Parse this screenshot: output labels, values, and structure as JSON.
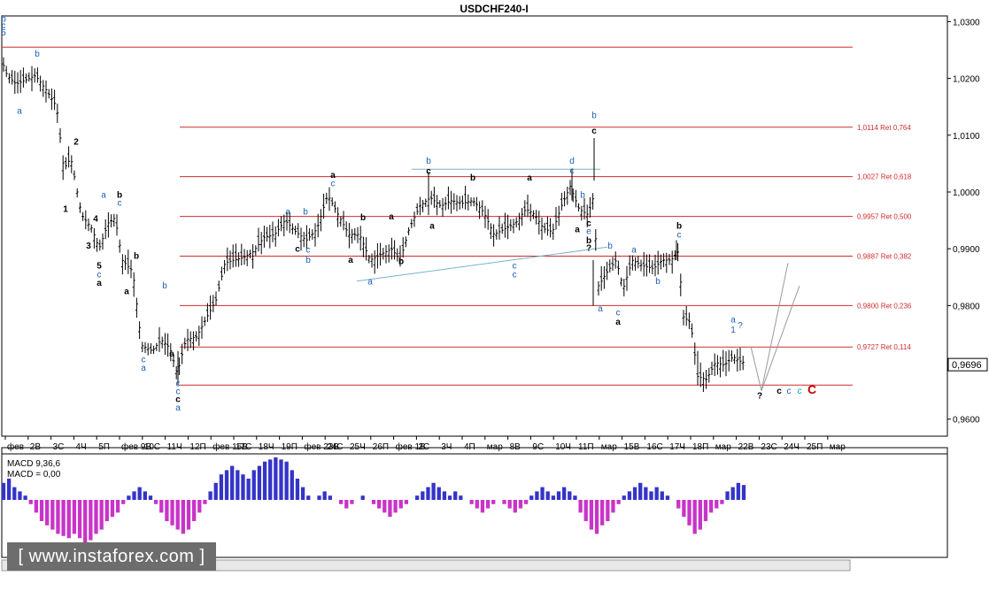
{
  "chart_data": {
    "type": "candlestick",
    "title": "USDCHF240-I",
    "ylim": [
      0.957,
      1.031
    ],
    "y_ticks": [
      "1,0300",
      "1,0200",
      "1,0100",
      "1,0000",
      "0,9900",
      "0,9800",
      "0,9600"
    ],
    "current_price": "0,9696",
    "x_ticks": [
      "фев",
      "2В",
      "3С",
      "4Ч",
      "5П",
      "фев 9В",
      "10С",
      "11Ч",
      "12П",
      "фев 16В",
      "17С",
      "18Ч",
      "19П",
      "фев 23В",
      "24С",
      "25Ч",
      "26П",
      "фев 1В",
      "2С",
      "3Ч",
      "4П",
      "мар",
      "8В",
      "9С",
      "10Ч",
      "11П",
      "мар",
      "15В",
      "16С",
      "17Ч",
      "18П",
      "мар",
      "22В",
      "23С",
      "24Ч",
      "25П",
      "мар"
    ],
    "fib_levels": [
      {
        "price": 1.0255,
        "label": ""
      },
      {
        "price": 1.0114,
        "label": "1,0114 Ret 0,764"
      },
      {
        "price": 1.0027,
        "label": "1,0027 Ret 0,618"
      },
      {
        "price": 0.9957,
        "label": "0,9957 Ret 0,500"
      },
      {
        "price": 0.9887,
        "label": "0,9887 Ret 0,382"
      },
      {
        "price": 0.98,
        "label": "0,9800 Ret 0,236"
      },
      {
        "price": 0.9727,
        "label": "0,9727 Ret 0,114"
      },
      {
        "price": 0.966,
        "label": ""
      }
    ],
    "close_path": [
      [
        0,
        1.024
      ],
      [
        8,
        1.0205
      ],
      [
        18,
        1.019
      ],
      [
        26,
        1.0195
      ],
      [
        40,
        1.0205
      ],
      [
        52,
        1.018
      ],
      [
        64,
        1.015
      ],
      [
        72,
        1.004
      ],
      [
        80,
        1.006
      ],
      [
        92,
        0.996
      ],
      [
        104,
        0.9935
      ],
      [
        112,
        0.99
      ],
      [
        122,
        0.9945
      ],
      [
        130,
        0.9955
      ],
      [
        138,
        0.988
      ],
      [
        150,
        0.986
      ],
      [
        160,
        0.973
      ],
      [
        172,
        0.972
      ],
      [
        182,
        0.974
      ],
      [
        192,
        0.9725
      ],
      [
        200,
        0.968
      ],
      [
        210,
        0.974
      ],
      [
        222,
        0.9745
      ],
      [
        232,
        0.9775
      ],
      [
        244,
        0.981
      ],
      [
        254,
        0.9875
      ],
      [
        264,
        0.988
      ],
      [
        276,
        0.9885
      ],
      [
        286,
        0.9895
      ],
      [
        298,
        0.992
      ],
      [
        310,
        0.9925
      ],
      [
        322,
        0.995
      ],
      [
        334,
        0.993
      ],
      [
        346,
        0.9915
      ],
      [
        358,
        0.9935
      ],
      [
        370,
        0.9995
      ],
      [
        382,
        0.996
      ],
      [
        394,
        0.9925
      ],
      [
        406,
        0.9925
      ],
      [
        418,
        0.988
      ],
      [
        430,
        0.989
      ],
      [
        442,
        0.99
      ],
      [
        452,
        0.988
      ],
      [
        462,
        0.9935
      ],
      [
        474,
        0.9975
      ],
      [
        486,
        0.999
      ],
      [
        498,
        0.9975
      ],
      [
        510,
        0.9985
      ],
      [
        522,
        0.998
      ],
      [
        534,
        0.9985
      ],
      [
        546,
        0.9965
      ],
      [
        558,
        0.9925
      ],
      [
        570,
        0.9935
      ],
      [
        582,
        0.9945
      ],
      [
        594,
        0.997
      ],
      [
        604,
        0.996
      ],
      [
        614,
        0.9935
      ],
      [
        624,
        0.993
      ],
      [
        634,
        0.9975
      ],
      [
        644,
        1.001
      ],
      [
        654,
        0.997
      ],
      [
        664,
        0.996
      ],
      [
        670,
        0.999
      ],
      [
        676,
        0.9835
      ],
      [
        686,
        0.986
      ],
      [
        696,
        0.988
      ],
      [
        704,
        0.983
      ],
      [
        714,
        0.988
      ],
      [
        726,
        0.987
      ],
      [
        738,
        0.9865
      ],
      [
        748,
        0.988
      ],
      [
        758,
        0.988
      ],
      [
        766,
        0.9895
      ],
      [
        772,
        0.978
      ],
      [
        780,
        0.977
      ],
      [
        788,
        0.9675
      ],
      [
        798,
        0.967
      ],
      [
        808,
        0.97
      ],
      [
        818,
        0.9695
      ],
      [
        828,
        0.971
      ],
      [
        838,
        0.97
      ]
    ],
    "projection_lines": [
      [
        [
          848,
          0.9728
        ],
        [
          860,
          0.965
        ],
        [
          890,
          0.9875
        ]
      ],
      [
        [
          860,
          0.965
        ],
        [
          903,
          0.9835
        ]
      ]
    ],
    "macd": {
      "label": "MACD 9,36,6",
      "value_label": "MACD = 0,00",
      "values": [
        0.4,
        0.5,
        0.3,
        0.2,
        0.1,
        -0.1,
        -0.3,
        -0.5,
        -0.6,
        -0.7,
        -0.8,
        -0.85,
        -0.9,
        -0.8,
        -0.9,
        -1.0,
        -0.95,
        -0.8,
        -0.7,
        -0.5,
        -0.4,
        -0.3,
        -0.1,
        0.1,
        0.2,
        0.3,
        0.2,
        0.1,
        -0.1,
        -0.3,
        -0.5,
        -0.6,
        -0.7,
        -0.8,
        -0.7,
        -0.5,
        -0.3,
        -0.1,
        0.2,
        0.4,
        0.6,
        0.7,
        0.8,
        0.7,
        0.6,
        0.5,
        0.7,
        0.8,
        0.9,
        0.95,
        1.0,
        0.95,
        0.9,
        0.7,
        0.5,
        0.3,
        0.1,
        0.0,
        0.1,
        0.2,
        0.1,
        0.0,
        -0.1,
        -0.2,
        -0.1,
        0.0,
        0.1,
        0.0,
        -0.1,
        -0.2,
        -0.3,
        -0.4,
        -0.3,
        -0.2,
        -0.1,
        0.0,
        0.1,
        0.2,
        0.3,
        0.4,
        0.3,
        0.2,
        0.1,
        0.2,
        0.1,
        0.0,
        -0.1,
        -0.2,
        -0.3,
        -0.2,
        -0.1,
        0.0,
        -0.1,
        -0.2,
        -0.3,
        -0.2,
        -0.1,
        0.1,
        0.2,
        0.3,
        0.2,
        0.1,
        0.2,
        0.3,
        0.2,
        0.1,
        -0.3,
        -0.5,
        -0.7,
        -0.8,
        -0.6,
        -0.5,
        -0.3,
        -0.1,
        0.1,
        0.2,
        0.3,
        0.4,
        0.3,
        0.2,
        0.3,
        0.2,
        0.1,
        0.0,
        -0.2,
        -0.4,
        -0.6,
        -0.8,
        -0.7,
        -0.5,
        -0.3,
        -0.2,
        -0.1,
        0.2,
        0.3,
        0.4,
        0.35
      ],
      "bars_start": 4,
      "bars_end": 840
    },
    "wave_labels": [
      {
        "x": 4,
        "y": 1.03,
        "t": "b",
        "c": "#1c5fb4"
      },
      {
        "x": 4,
        "y": 1.0288,
        "t": "c",
        "c": "#1c5fb4"
      },
      {
        "x": 4,
        "y": 1.0276,
        "t": "5",
        "c": "#1c5fb4"
      },
      {
        "x": 42,
        "y": 1.0238,
        "t": "b",
        "c": "#1c5fb4"
      },
      {
        "x": 22,
        "y": 1.0138,
        "t": "a",
        "c": "#1c5fb4"
      },
      {
        "x": 86,
        "y": 1.0083,
        "t": "2",
        "c": "#000"
      },
      {
        "x": 74,
        "y": 0.9965,
        "t": "1",
        "c": "#000"
      },
      {
        "x": 117,
        "y": 0.999,
        "t": "a",
        "c": "#1c5fb4"
      },
      {
        "x": 135,
        "y": 0.999,
        "t": "b",
        "c": "#000"
      },
      {
        "x": 135,
        "y": 0.9976,
        "t": "c",
        "c": "#1c5fb4"
      },
      {
        "x": 108,
        "y": 0.9948,
        "t": "4",
        "c": "#000"
      },
      {
        "x": 100,
        "y": 0.99,
        "t": "3",
        "c": "#000"
      },
      {
        "x": 112,
        "y": 0.9865,
        "t": "5",
        "c": "#000"
      },
      {
        "x": 112,
        "y": 0.985,
        "t": "c",
        "c": "#1c5fb4"
      },
      {
        "x": 112,
        "y": 0.9835,
        "t": "a",
        "c": "#000"
      },
      {
        "x": 154,
        "y": 0.9882,
        "t": "b",
        "c": "#000"
      },
      {
        "x": 143,
        "y": 0.982,
        "t": "a",
        "c": "#000"
      },
      {
        "x": 186,
        "y": 0.983,
        "t": "b",
        "c": "#1c5fb4"
      },
      {
        "x": 162,
        "y": 0.97,
        "t": "c",
        "c": "#1c5fb4"
      },
      {
        "x": 162,
        "y": 0.9685,
        "t": "a",
        "c": "#1c5fb4"
      },
      {
        "x": 194,
        "y": 0.971,
        "t": "a",
        "c": "#000"
      },
      {
        "x": 201,
        "y": 0.9658,
        "t": "c",
        "c": "#1c5fb4"
      },
      {
        "x": 201,
        "y": 0.9644,
        "t": "c",
        "c": "#1c5fb4"
      },
      {
        "x": 201,
        "y": 0.963,
        "t": "c",
        "c": "#000"
      },
      {
        "x": 201,
        "y": 0.9615,
        "t": "a",
        "c": "#1c5fb4"
      },
      {
        "x": 325,
        "y": 0.996,
        "t": "a",
        "c": "#1c5fb4"
      },
      {
        "x": 345,
        "y": 0.996,
        "t": "b",
        "c": "#1c5fb4"
      },
      {
        "x": 376,
        "y": 1.0025,
        "t": "a",
        "c": "#000"
      },
      {
        "x": 376,
        "y": 1.001,
        "t": "c",
        "c": "#1c5fb4"
      },
      {
        "x": 336,
        "y": 0.9895,
        "t": "c",
        "c": "#000"
      },
      {
        "x": 348,
        "y": 0.9893,
        "t": "c",
        "c": "#1c5fb4"
      },
      {
        "x": 348,
        "y": 0.9875,
        "t": "b",
        "c": "#1c5fb4"
      },
      {
        "x": 410,
        "y": 0.995,
        "t": "b",
        "c": "#000"
      },
      {
        "x": 442,
        "y": 0.9952,
        "t": "a",
        "c": "#000"
      },
      {
        "x": 396,
        "y": 0.9875,
        "t": "a",
        "c": "#000"
      },
      {
        "x": 453,
        "y": 0.9873,
        "t": "b",
        "c": "#000"
      },
      {
        "x": 418,
        "y": 0.9837,
        "t": "a",
        "c": "#1c5fb4"
      },
      {
        "x": 484,
        "y": 1.005,
        "t": "b",
        "c": "#1c5fb4"
      },
      {
        "x": 484,
        "y": 1.0032,
        "t": "c",
        "c": "#000"
      },
      {
        "x": 534,
        "y": 1.002,
        "t": "b",
        "c": "#000"
      },
      {
        "x": 488,
        "y": 0.9935,
        "t": "a",
        "c": "#000"
      },
      {
        "x": 598,
        "y": 1.002,
        "t": "a",
        "c": "#000"
      },
      {
        "x": 581,
        "y": 0.9865,
        "t": "c",
        "c": "#1c5fb4"
      },
      {
        "x": 581,
        "y": 0.985,
        "t": "c",
        "c": "#1c5fb4"
      },
      {
        "x": 646,
        "y": 1.005,
        "t": "d",
        "c": "#1c5fb4"
      },
      {
        "x": 646,
        "y": 1.0033,
        "t": "c",
        "c": "#1c5fb4"
      },
      {
        "x": 658,
        "y": 0.999,
        "t": "b",
        "c": "#1c5fb4"
      },
      {
        "x": 652,
        "y": 0.9929,
        "t": "a",
        "c": "#000"
      },
      {
        "x": 665,
        "y": 0.994,
        "t": "c",
        "c": "#000"
      },
      {
        "x": 665,
        "y": 0.9926,
        "t": "e",
        "c": "#1c5fb4"
      },
      {
        "x": 665,
        "y": 0.991,
        "t": "b",
        "c": "#000"
      },
      {
        "x": 665,
        "y": 0.9896,
        "t": "?",
        "c": "#000"
      },
      {
        "x": 671,
        "y": 1.013,
        "t": "b",
        "c": "#1c5fb4"
      },
      {
        "x": 671,
        "y": 1.0103,
        "t": "c",
        "c": "#000"
      },
      {
        "x": 689,
        "y": 0.99,
        "t": "b",
        "c": "#1c5fb4"
      },
      {
        "x": 716,
        "y": 0.9893,
        "t": "a",
        "c": "#1c5fb4"
      },
      {
        "x": 678,
        "y": 0.979,
        "t": "a",
        "c": "#1c5fb4"
      },
      {
        "x": 698,
        "y": 0.9783,
        "t": "c",
        "c": "#1c5fb4"
      },
      {
        "x": 698,
        "y": 0.9766,
        "t": "a",
        "c": "#000"
      },
      {
        "x": 743,
        "y": 0.9838,
        "t": "b",
        "c": "#1c5fb4"
      },
      {
        "x": 767,
        "y": 0.9935,
        "t": "b",
        "c": "#000"
      },
      {
        "x": 767,
        "y": 0.992,
        "t": "c",
        "c": "#1c5fb4"
      },
      {
        "x": 828,
        "y": 0.977,
        "t": "a",
        "c": "#1c5fb4"
      },
      {
        "x": 828,
        "y": 0.9752,
        "t": "1",
        "c": "#1c5fb4"
      },
      {
        "x": 836,
        "y": 0.976,
        "t": "?",
        "c": "#1c5fb4"
      },
      {
        "x": 858,
        "y": 0.9636,
        "t": "?",
        "c": "#000"
      },
      {
        "x": 880,
        "y": 0.9645,
        "t": "c",
        "c": "#000"
      },
      {
        "x": 891,
        "y": 0.9645,
        "t": "c",
        "c": "#1c5fb4"
      },
      {
        "x": 903,
        "y": 0.9645,
        "t": "c",
        "c": "#00a0c8"
      },
      {
        "x": 917,
        "y": 0.9645,
        "t": "C",
        "c": "#c00000"
      }
    ]
  },
  "watermark": "[ www.instaforex.com ]",
  "colors": {
    "fib": "#d12c2c",
    "projection": "#9a9a9a",
    "trend": "#78b4c8",
    "macd_pos": "#3434c8",
    "macd_neg": "#c834c8"
  }
}
